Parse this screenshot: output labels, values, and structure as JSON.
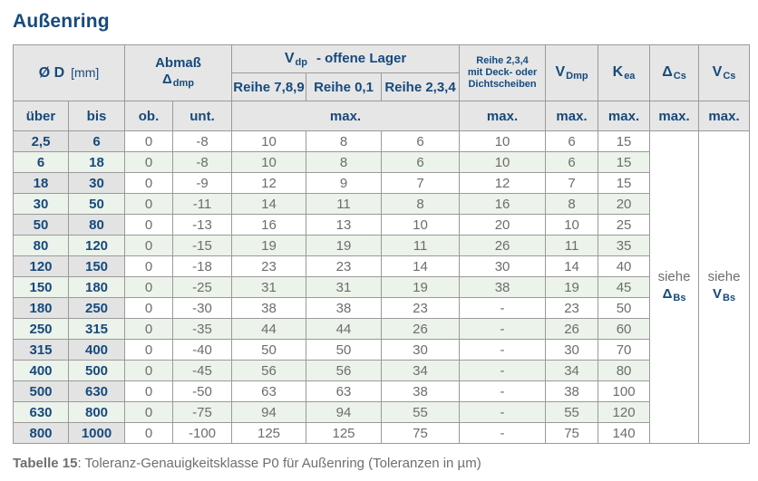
{
  "title": "Außenring",
  "header": {
    "od": {
      "label": "Ø D",
      "unit": "[mm]"
    },
    "abmass": {
      "line1": "Abmaß",
      "sym": "Δ",
      "sub": "dmp"
    },
    "vdp": {
      "sym": "V",
      "sub": "dp",
      "rest": "-  offene Lager"
    },
    "reihe789": "Reihe 7,8,9",
    "reihe01": "Reihe 0,1",
    "reihe234": "Reihe 2,3,4",
    "deck_lines": [
      "Reihe 2,3,4",
      "mit Deck- oder",
      "Dichtscheiben"
    ],
    "vdmp": {
      "sym": "V",
      "sub": "Dmp"
    },
    "kea": {
      "sym": "K",
      "sub": "ea"
    },
    "dcs": {
      "sym": "Δ",
      "sub": "Cs"
    },
    "vcs": {
      "sym": "V",
      "sub": "Cs"
    },
    "uber": "über",
    "bis": "bis",
    "ob": "ob.",
    "unt": "unt.",
    "max": "max."
  },
  "see_refs": {
    "dbs": {
      "word": "siehe",
      "sym": "Δ",
      "sub": "Bs"
    },
    "vbs": {
      "word": "siehe",
      "sym": "V",
      "sub": "Bs"
    }
  },
  "rows": [
    {
      "uber": "2,5",
      "bis": "6",
      "ob": "0",
      "unt": "-8",
      "r789": "10",
      "r01": "8",
      "r234": "6",
      "deck": "10",
      "vdmp": "6",
      "kea": "15"
    },
    {
      "uber": "6",
      "bis": "18",
      "ob": "0",
      "unt": "-8",
      "r789": "10",
      "r01": "8",
      "r234": "6",
      "deck": "10",
      "vdmp": "6",
      "kea": "15"
    },
    {
      "uber": "18",
      "bis": "30",
      "ob": "0",
      "unt": "-9",
      "r789": "12",
      "r01": "9",
      "r234": "7",
      "deck": "12",
      "vdmp": "7",
      "kea": "15"
    },
    {
      "uber": "30",
      "bis": "50",
      "ob": "0",
      "unt": "-11",
      "r789": "14",
      "r01": "11",
      "r234": "8",
      "deck": "16",
      "vdmp": "8",
      "kea": "20"
    },
    {
      "uber": "50",
      "bis": "80",
      "ob": "0",
      "unt": "-13",
      "r789": "16",
      "r01": "13",
      "r234": "10",
      "deck": "20",
      "vdmp": "10",
      "kea": "25"
    },
    {
      "uber": "80",
      "bis": "120",
      "ob": "0",
      "unt": "-15",
      "r789": "19",
      "r01": "19",
      "r234": "11",
      "deck": "26",
      "vdmp": "11",
      "kea": "35"
    },
    {
      "uber": "120",
      "bis": "150",
      "ob": "0",
      "unt": "-18",
      "r789": "23",
      "r01": "23",
      "r234": "14",
      "deck": "30",
      "vdmp": "14",
      "kea": "40"
    },
    {
      "uber": "150",
      "bis": "180",
      "ob": "0",
      "unt": "-25",
      "r789": "31",
      "r01": "31",
      "r234": "19",
      "deck": "38",
      "vdmp": "19",
      "kea": "45"
    },
    {
      "uber": "180",
      "bis": "250",
      "ob": "0",
      "unt": "-30",
      "r789": "38",
      "r01": "38",
      "r234": "23",
      "deck": "-",
      "vdmp": "23",
      "kea": "50"
    },
    {
      "uber": "250",
      "bis": "315",
      "ob": "0",
      "unt": "-35",
      "r789": "44",
      "r01": "44",
      "r234": "26",
      "deck": "-",
      "vdmp": "26",
      "kea": "60"
    },
    {
      "uber": "315",
      "bis": "400",
      "ob": "0",
      "unt": "-40",
      "r789": "50",
      "r01": "50",
      "r234": "30",
      "deck": "-",
      "vdmp": "30",
      "kea": "70"
    },
    {
      "uber": "400",
      "bis": "500",
      "ob": "0",
      "unt": "-45",
      "r789": "56",
      "r01": "56",
      "r234": "34",
      "deck": "-",
      "vdmp": "34",
      "kea": "80"
    },
    {
      "uber": "500",
      "bis": "630",
      "ob": "0",
      "unt": "-50",
      "r789": "63",
      "r01": "63",
      "r234": "38",
      "deck": "-",
      "vdmp": "38",
      "kea": "100"
    },
    {
      "uber": "630",
      "bis": "800",
      "ob": "0",
      "unt": "-75",
      "r789": "94",
      "r01": "94",
      "r234": "55",
      "deck": "-",
      "vdmp": "55",
      "kea": "120"
    },
    {
      "uber": "800",
      "bis": "1000",
      "ob": "0",
      "unt": "-100",
      "r789": "125",
      "r01": "125",
      "r234": "75",
      "deck": "-",
      "vdmp": "75",
      "kea": "140"
    }
  ],
  "caption": {
    "bold": "Tabelle 15",
    "rest": ": Toleranz-Genauigkeitsklasse P0 für Außenring (Toleranzen in µm)"
  },
  "colors": {
    "accent_blue": "#164a7c",
    "row_green": "#ecf3ea",
    "header_gray": "#e6e6e6",
    "range_col_gray": "#e3e3e3",
    "text_gray": "#6d6d6d",
    "border_gray": "#9a9a9a"
  }
}
